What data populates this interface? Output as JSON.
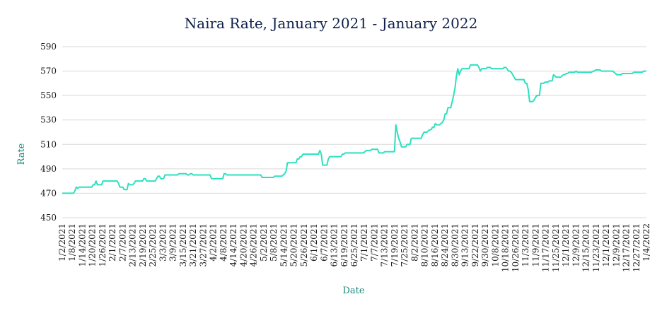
{
  "chart_data": {
    "type": "line",
    "title": "Naira Rate, January 2021 - January 2022",
    "xlabel": "Date",
    "ylabel": "Rate",
    "ylim": [
      450,
      590
    ],
    "yticks": [
      450,
      470,
      490,
      510,
      530,
      550,
      570,
      590
    ],
    "grid": true,
    "colors": {
      "line": "#2de0bf",
      "title": "#0d1f4a",
      "axis_label": "#1a8a7a"
    },
    "xtick_labels": [
      "1/2/2021",
      "1/8/2021",
      "1/14/2021",
      "1/20/2021",
      "1/26/2021",
      "2/1/2021",
      "2/7/2021",
      "2/13/2021",
      "2/19/2021",
      "2/25/2021",
      "3/3/2021",
      "3/9/2021",
      "3/15/2021",
      "3/21/2021",
      "3/27/2021",
      "4/2/2021",
      "4/8/2021",
      "4/14/2021",
      "4/20/2021",
      "4/26/2021",
      "5/2/2021",
      "5/8/2021",
      "5/14/2021",
      "5/20/2021",
      "5/26/2021",
      "6/1/2021",
      "6/7/2021",
      "6/13/2021",
      "6/19/2021",
      "6/25/2021",
      "7/1/2021",
      "7/7/2021",
      "7/13/2021",
      "7/19/2021",
      "7/25/2021",
      "8/2/2021",
      "8/10/2021",
      "8/16/2021",
      "8/24/2021",
      "8/30/2021",
      "9/13/2021",
      "9/22/2021",
      "9/30/2021",
      "10/8/2021",
      "10/18/2021",
      "10/26/2021",
      "11/3/2021",
      "11/9/2021",
      "11/17/2021",
      "11/25/2021",
      "12/1/2021",
      "12/9/2021",
      "12/15/2021",
      "11/23/2021",
      "12/1/2021",
      "12/9/2021",
      "12/17/2021",
      "12/27/2021",
      "1/4/2022"
    ],
    "series": [
      {
        "values": [
          470,
          470,
          470,
          470,
          470,
          470,
          470,
          470,
          470,
          472,
          475,
          474,
          475,
          475,
          475,
          475,
          475,
          475,
          475,
          475,
          475,
          475,
          477,
          477,
          480,
          477,
          477,
          477,
          477,
          480,
          480,
          480,
          480,
          480,
          480,
          480,
          480,
          480,
          480,
          480,
          478,
          475,
          475,
          475,
          473,
          473,
          473,
          478,
          477,
          477,
          477,
          478,
          480,
          480,
          480,
          480,
          480,
          480,
          482,
          482,
          480,
          480,
          480,
          480,
          480,
          480,
          480,
          482,
          484,
          484,
          482,
          482,
          482,
          485,
          485,
          485,
          485,
          485,
          485,
          485,
          485,
          485,
          485,
          486,
          486,
          486,
          486,
          486,
          486,
          485,
          485,
          486,
          486,
          485,
          485,
          485,
          485,
          485,
          485,
          485,
          485,
          485,
          485,
          485,
          485,
          485,
          482,
          482,
          482,
          482,
          482,
          482,
          482,
          482,
          482,
          486,
          486,
          485,
          485,
          485,
          485,
          485,
          485,
          485,
          485,
          485,
          485,
          485,
          485,
          485,
          485,
          485,
          485,
          485,
          485,
          485,
          485,
          485,
          485,
          485,
          485,
          485,
          483,
          483,
          483,
          483,
          483,
          483,
          483,
          483,
          483,
          484,
          484,
          484,
          484,
          484,
          484,
          485,
          486,
          488,
          495,
          495,
          495,
          495,
          495,
          495,
          495,
          498,
          498,
          500,
          500,
          502,
          502,
          502,
          502,
          502,
          502,
          502,
          502,
          502,
          502,
          502,
          502,
          505,
          502,
          493,
          493,
          493,
          493,
          498,
          500,
          500,
          500,
          500,
          500,
          500,
          500,
          500,
          500,
          502,
          502,
          503,
          503,
          503,
          503,
          503,
          503,
          503,
          503,
          503,
          503,
          503,
          503,
          503,
          503,
          504,
          505,
          505,
          505,
          505,
          506,
          506,
          506,
          506,
          506,
          503,
          503,
          503,
          503,
          504,
          504,
          504,
          504,
          504,
          504,
          504,
          504,
          526,
          520,
          515,
          512,
          508,
          508,
          508,
          508,
          510,
          510,
          510,
          515,
          515,
          515,
          515,
          515,
          515,
          515,
          515,
          518,
          520,
          520,
          520,
          521,
          522,
          522,
          524,
          524,
          527,
          526,
          526,
          526,
          527,
          528,
          530,
          535,
          535,
          540,
          540,
          540,
          545,
          550,
          556,
          566,
          572,
          567,
          570,
          572,
          572,
          572,
          572,
          572,
          572,
          575,
          575,
          575,
          575,
          575,
          575,
          573,
          570,
          572,
          572,
          572,
          572,
          573,
          573,
          573,
          572,
          572,
          572,
          572,
          572,
          572,
          572,
          572,
          572,
          573,
          573,
          572,
          570,
          570,
          569,
          567,
          565,
          563,
          563,
          563,
          563,
          563,
          563,
          563,
          560,
          560,
          555,
          545,
          545,
          545,
          546,
          548,
          550,
          550,
          550,
          560,
          560,
          560,
          561,
          561,
          561,
          562,
          562,
          562,
          567,
          566,
          565,
          565,
          565,
          565,
          566,
          567,
          567,
          568,
          568,
          569,
          569,
          569,
          569,
          569,
          570,
          569,
          569,
          569,
          569,
          569,
          569,
          569,
          569,
          569,
          569,
          569,
          570,
          570,
          571,
          571,
          571,
          571,
          570,
          570,
          570,
          570,
          570,
          570,
          570,
          570,
          570,
          569,
          568,
          567,
          567,
          567,
          567,
          568,
          568,
          568,
          568,
          568,
          568,
          568,
          568,
          569,
          569,
          569,
          569,
          569,
          569,
          569,
          570,
          570,
          570
        ]
      }
    ]
  }
}
